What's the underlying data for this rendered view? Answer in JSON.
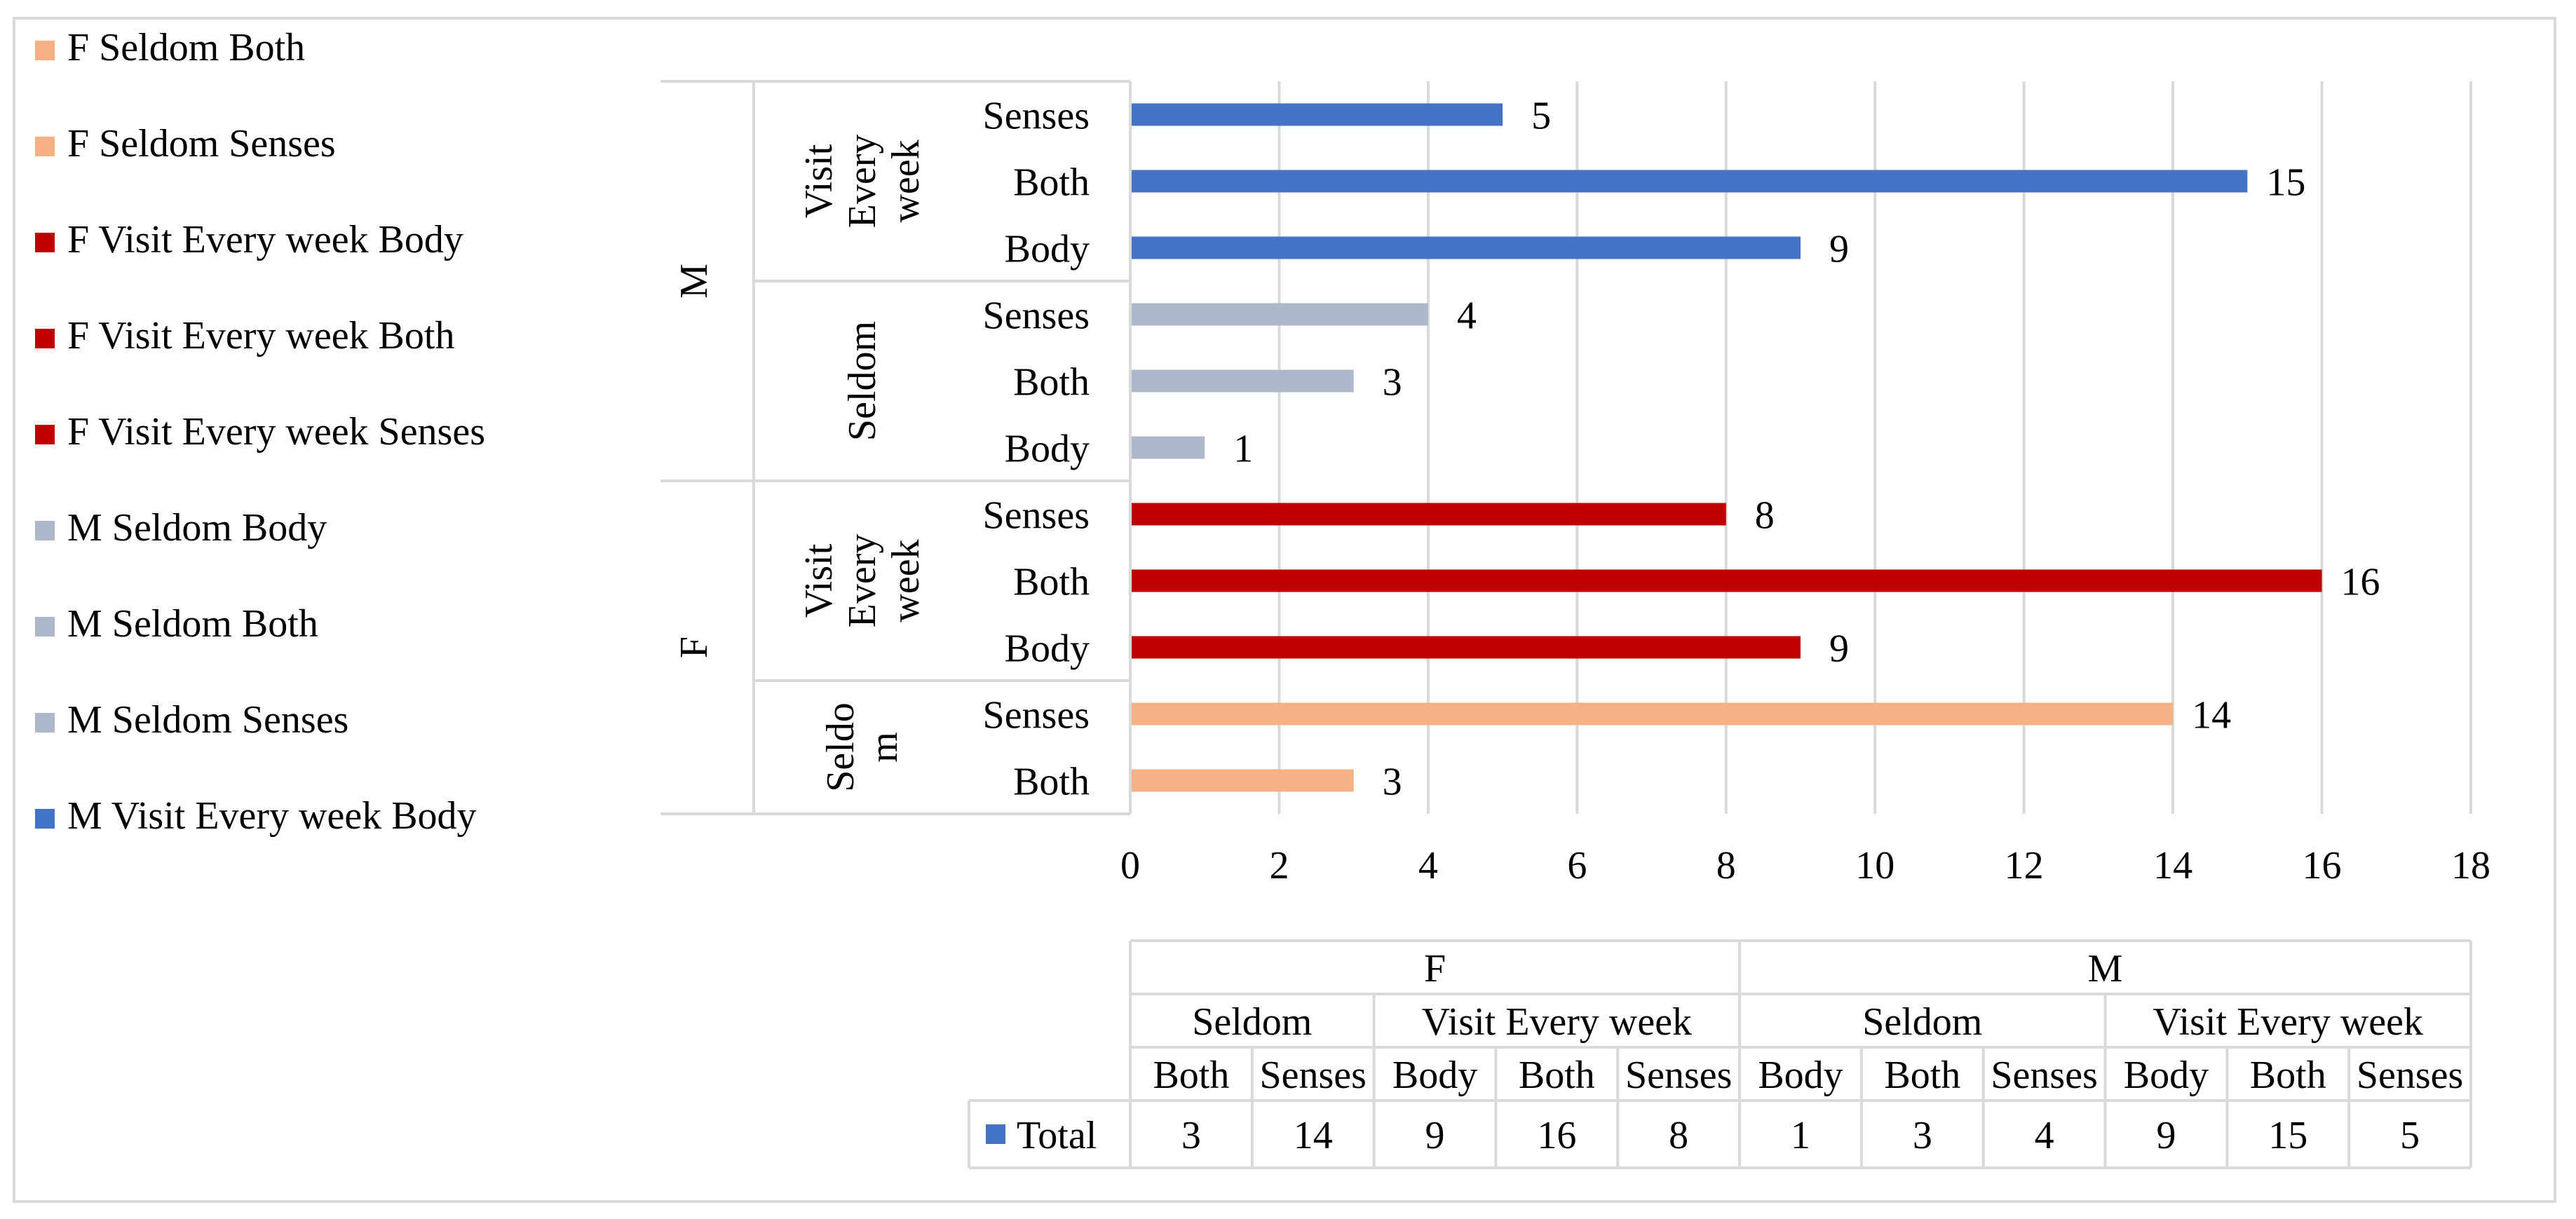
{
  "legend": [
    {
      "label": "F Seldom Both",
      "color": "#f4b183"
    },
    {
      "label": "F Seldom Senses",
      "color": "#f4b183"
    },
    {
      "label": "F Visit Every week Body",
      "color": "#c00000"
    },
    {
      "label": "F Visit Every week Both",
      "color": "#c00000"
    },
    {
      "label": "F Visit Every week Senses",
      "color": "#c00000"
    },
    {
      "label": "M Seldom Body",
      "color": "#adb9ca"
    },
    {
      "label": "M Seldom Both",
      "color": "#adb9ca"
    },
    {
      "label": "M Seldom Senses",
      "color": "#adb9ca"
    },
    {
      "label": "M Visit Every week Body",
      "color": "#4472c4"
    }
  ],
  "chart_data": {
    "type": "bar",
    "orientation": "horizontal",
    "xlim": [
      0,
      18
    ],
    "xticks": [
      0,
      2,
      4,
      6,
      8,
      10,
      12,
      14,
      16,
      18
    ],
    "grid": true,
    "groups": [
      {
        "gender": "M",
        "frequencies": [
          {
            "label_lines": [
              "Visit",
              "Every",
              "week"
            ],
            "name": "Visit Every week",
            "color": "#4472c4",
            "bars": [
              {
                "category": "Senses",
                "value": 5
              },
              {
                "category": "Both",
                "value": 15
              },
              {
                "category": "Body",
                "value": 9
              }
            ]
          },
          {
            "label_lines": [
              "Seldom"
            ],
            "name": "Seldom",
            "color": "#adb9ca",
            "bars": [
              {
                "category": "Senses",
                "value": 4
              },
              {
                "category": "Both",
                "value": 3
              },
              {
                "category": "Body",
                "value": 1
              }
            ]
          }
        ]
      },
      {
        "gender": "F",
        "frequencies": [
          {
            "label_lines": [
              "Visit",
              "Every",
              "week"
            ],
            "name": "Visit Every week",
            "color": "#c00000",
            "bars": [
              {
                "category": "Senses",
                "value": 8
              },
              {
                "category": "Both",
                "value": 16
              },
              {
                "category": "Body",
                "value": 9
              }
            ]
          },
          {
            "label_lines": [
              "Seldo",
              "m"
            ],
            "name": "Seldom",
            "color": "#f4b183",
            "bars": [
              {
                "category": "Senses",
                "value": 14
              },
              {
                "category": "Both",
                "value": 3
              }
            ]
          }
        ]
      }
    ],
    "data_table": {
      "series_name": "Total",
      "series_color": "#4472c4",
      "level1": [
        {
          "label": "F",
          "span": 5
        },
        {
          "label": "M",
          "span": 6
        }
      ],
      "level2": [
        {
          "label": "Seldom",
          "span": 2
        },
        {
          "label": "Visit Every week",
          "span": 3
        },
        {
          "label": "Seldom",
          "span": 3
        },
        {
          "label": "Visit Every week",
          "span": 3
        }
      ],
      "level3": [
        "Both",
        "Senses",
        "Body",
        "Both",
        "Senses",
        "Body",
        "Both",
        "Senses",
        "Body",
        "Both",
        "Senses"
      ],
      "values": [
        3,
        14,
        9,
        16,
        8,
        1,
        3,
        4,
        9,
        15,
        5
      ]
    }
  }
}
